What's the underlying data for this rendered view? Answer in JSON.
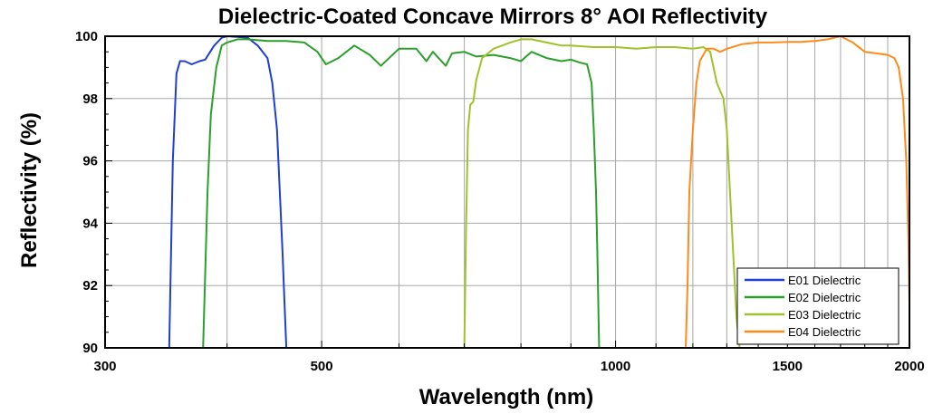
{
  "chart_data": {
    "type": "line",
    "title": "Dielectric-Coated Concave Mirrors 8° AOI Reflectivity",
    "xlabel": "Wavelength (nm)",
    "ylabel": "Reflectivity (%)",
    "x_scale": "log",
    "xlim": [
      300,
      2000
    ],
    "ylim": [
      90,
      100
    ],
    "x_ticks": [
      300,
      500,
      1000,
      1500,
      2000
    ],
    "y_ticks": [
      90,
      92,
      94,
      96,
      98,
      100
    ],
    "grid": true,
    "legend_position": "bottom-right",
    "series": [
      {
        "name": "E01 Dielectric",
        "color": "#1f3fd0",
        "x": [
          349,
          352,
          355,
          358,
          362,
          368,
          375,
          380,
          388,
          395,
          400,
          410,
          420,
          430,
          440,
          445,
          450,
          453,
          456,
          458,
          460
        ],
        "y": [
          90,
          96,
          98.8,
          99.2,
          99.2,
          99.1,
          99.2,
          99.25,
          99.7,
          99.95,
          100,
          99.98,
          99.95,
          99.7,
          99.3,
          98.5,
          97,
          95,
          93,
          91.5,
          90
        ]
      },
      {
        "name": "E02 Dielectric",
        "color": "#2aa02a",
        "x": [
          378,
          382,
          385,
          390,
          395,
          400,
          410,
          420,
          440,
          460,
          480,
          495,
          505,
          520,
          540,
          560,
          575,
          600,
          625,
          640,
          650,
          670,
          680,
          700,
          720,
          750,
          780,
          800,
          820,
          850,
          880,
          900,
          920,
          935,
          945,
          950,
          955,
          958,
          962
        ],
        "y": [
          90,
          95,
          97.5,
          99,
          99.7,
          99.8,
          99.9,
          99.9,
          99.85,
          99.85,
          99.8,
          99.5,
          99.1,
          99.3,
          99.7,
          99.4,
          99.05,
          99.6,
          99.6,
          99.2,
          99.5,
          99.05,
          99.45,
          99.5,
          99.35,
          99.4,
          99.3,
          99.2,
          99.5,
          99.3,
          99.2,
          99.25,
          99.15,
          99.1,
          98.5,
          97,
          95,
          93,
          90
        ]
      },
      {
        "name": "E03 Dielectric",
        "color": "#9fc22a",
        "x": [
          700,
          703,
          706,
          710,
          715,
          720,
          730,
          750,
          780,
          800,
          820,
          850,
          880,
          900,
          950,
          1000,
          1050,
          1100,
          1150,
          1200,
          1230,
          1250,
          1270,
          1290,
          1300,
          1310,
          1320,
          1330,
          1340
        ],
        "y": [
          90,
          94,
          97,
          97.8,
          97.9,
          98.6,
          99.3,
          99.6,
          99.8,
          99.9,
          99.9,
          99.8,
          99.7,
          99.7,
          99.65,
          99.65,
          99.6,
          99.65,
          99.65,
          99.6,
          99.65,
          99.5,
          98.5,
          98,
          97,
          95,
          93,
          91,
          90
        ]
      },
      {
        "name": "E04 Dielectric",
        "color": "#ff8a1c",
        "x": [
          1180,
          1185,
          1190,
          1200,
          1210,
          1220,
          1240,
          1260,
          1280,
          1300,
          1350,
          1400,
          1450,
          1500,
          1550,
          1600,
          1650,
          1700,
          1750,
          1800,
          1850,
          1900,
          1930,
          1950,
          1970,
          1985,
          1995,
          2000
        ],
        "y": [
          90,
          92,
          95,
          97,
          98.5,
          99.2,
          99.6,
          99.6,
          99.5,
          99.6,
          99.75,
          99.8,
          99.8,
          99.82,
          99.82,
          99.85,
          99.9,
          100,
          99.8,
          99.5,
          99.45,
          99.4,
          99.3,
          99.0,
          98.0,
          96.0,
          93.5,
          91.5
        ]
      }
    ]
  }
}
